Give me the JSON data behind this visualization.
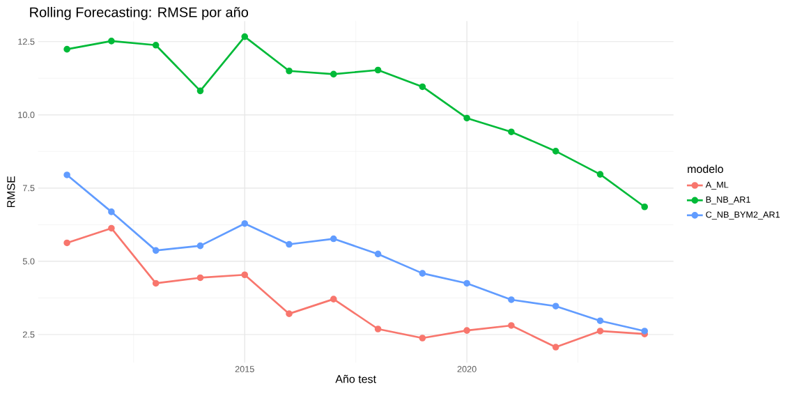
{
  "chart_data": {
    "type": "line",
    "title": "Rolling Forecasting: RMSE por año",
    "xlabel": "Año test",
    "ylabel": "RMSE",
    "legend_title": "modelo",
    "x": [
      2011,
      2012,
      2013,
      2014,
      2015,
      2016,
      2017,
      2018,
      2019,
      2020,
      2021,
      2022,
      2023,
      2024
    ],
    "series": [
      {
        "name": "A_ML",
        "color": "#f8766d",
        "values": [
          5.63,
          6.13,
          4.25,
          4.44,
          4.54,
          3.21,
          3.71,
          2.69,
          2.38,
          2.64,
          2.81,
          2.07,
          2.62,
          2.52
        ]
      },
      {
        "name": "B_NB_AR1",
        "color": "#00ba38",
        "values": [
          12.24,
          12.52,
          12.38,
          10.82,
          12.67,
          11.5,
          11.39,
          11.53,
          10.96,
          9.89,
          9.42,
          8.76,
          7.97,
          6.86
        ]
      },
      {
        "name": "C_NB_BYM2_AR1",
        "color": "#619cff",
        "values": [
          7.95,
          6.69,
          5.37,
          5.53,
          6.29,
          5.58,
          5.77,
          5.25,
          4.59,
          4.25,
          3.69,
          3.47,
          2.97,
          2.62
        ]
      }
    ],
    "xlim": [
      2010.35,
      2024.65
    ],
    "ylim": [
      1.54,
      13.2
    ],
    "xticks": [
      2015,
      2020
    ],
    "yticks": [
      2.5,
      {
        "value": 5,
        "label": "5.0"
      },
      7.5,
      {
        "value": 10,
        "label": "10.0"
      },
      12.5
    ],
    "grid": true,
    "legend": "right",
    "marker": "circle",
    "line_style": "solid"
  }
}
